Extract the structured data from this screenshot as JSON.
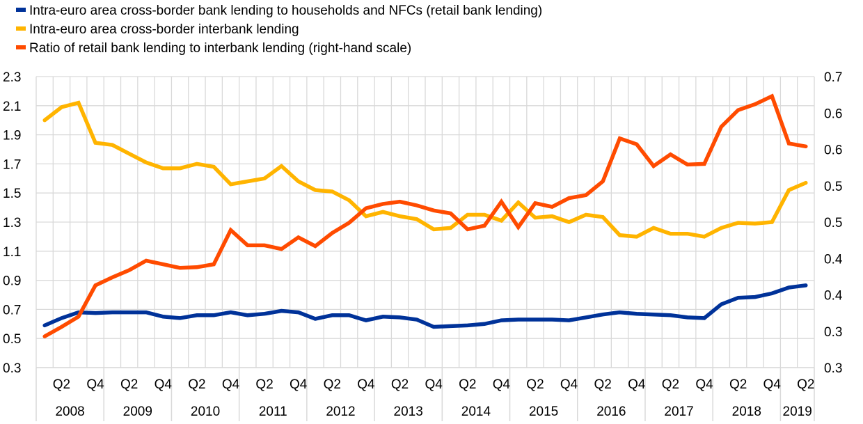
{
  "chart_data": {
    "type": "line",
    "title": "",
    "xlabel": "",
    "ylabel": "",
    "legend_position": "top-left",
    "grid": true,
    "ylim_left": [
      0.3,
      2.3
    ],
    "ylim_right": [
      0.3,
      0.7
    ],
    "left_ticks": [
      "2.3",
      "2.1",
      "1.9",
      "1.7",
      "1.5",
      "1.3",
      "1.1",
      "0.9",
      "0.7",
      "0.5",
      "0.3"
    ],
    "right_ticks": [
      "0.7",
      "0.6",
      "0.6",
      "0.5",
      "0.5",
      "0.4",
      "0.4",
      "0.3",
      "0.3"
    ],
    "years": [
      "2008",
      "2009",
      "2010",
      "2011",
      "2012",
      "2013",
      "2014",
      "2015",
      "2016",
      "2017",
      "2018",
      "2019"
    ],
    "quarter_labels": [
      "Q2",
      "Q4"
    ],
    "x_start": "2008 Q1",
    "x_end": "2019 Q2",
    "series": [
      {
        "name": "Intra-euro area cross-border bank lending to households and NFCs (retail bank lending)",
        "axis": "left",
        "color": "#003299",
        "values": [
          0.59,
          0.64,
          0.68,
          0.675,
          0.68,
          0.68,
          0.68,
          0.65,
          0.64,
          0.66,
          0.66,
          0.68,
          0.66,
          0.67,
          0.69,
          0.68,
          0.635,
          0.66,
          0.66,
          0.625,
          0.65,
          0.645,
          0.63,
          0.58,
          0.585,
          0.59,
          0.6,
          0.625,
          0.63,
          0.63,
          0.63,
          0.625,
          0.645,
          0.665,
          0.68,
          0.67,
          0.665,
          0.66,
          0.645,
          0.64,
          0.735,
          0.78,
          0.785,
          0.81,
          0.85,
          0.865
        ]
      },
      {
        "name": "Intra-euro area cross-border interbank lending",
        "axis": "left",
        "color": "#FFB400",
        "values": [
          2.0,
          2.09,
          2.12,
          1.845,
          1.83,
          1.77,
          1.71,
          1.67,
          1.67,
          1.7,
          1.68,
          1.56,
          1.58,
          1.6,
          1.685,
          1.58,
          1.52,
          1.51,
          1.45,
          1.34,
          1.37,
          1.34,
          1.32,
          1.25,
          1.26,
          1.35,
          1.35,
          1.31,
          1.435,
          1.33,
          1.34,
          1.3,
          1.35,
          1.335,
          1.21,
          1.2,
          1.26,
          1.22,
          1.22,
          1.2,
          1.26,
          1.295,
          1.29,
          1.3,
          1.52,
          1.57
        ]
      },
      {
        "name": "Ratio of retail bank lending to interbank lending (right-hand scale)",
        "axis": "right",
        "color": "#FF4B00",
        "values": [
          0.343,
          0.356,
          0.37,
          0.413,
          0.424,
          0.434,
          0.447,
          0.442,
          0.437,
          0.438,
          0.442,
          0.489,
          0.468,
          0.468,
          0.463,
          0.479,
          0.467,
          0.485,
          0.499,
          0.519,
          0.525,
          0.528,
          0.523,
          0.516,
          0.512,
          0.49,
          0.495,
          0.528,
          0.493,
          0.526,
          0.521,
          0.533,
          0.537,
          0.556,
          0.615,
          0.607,
          0.577,
          0.593,
          0.579,
          0.58,
          0.631,
          0.654,
          0.662,
          0.673,
          0.608,
          0.604
        ]
      }
    ]
  }
}
